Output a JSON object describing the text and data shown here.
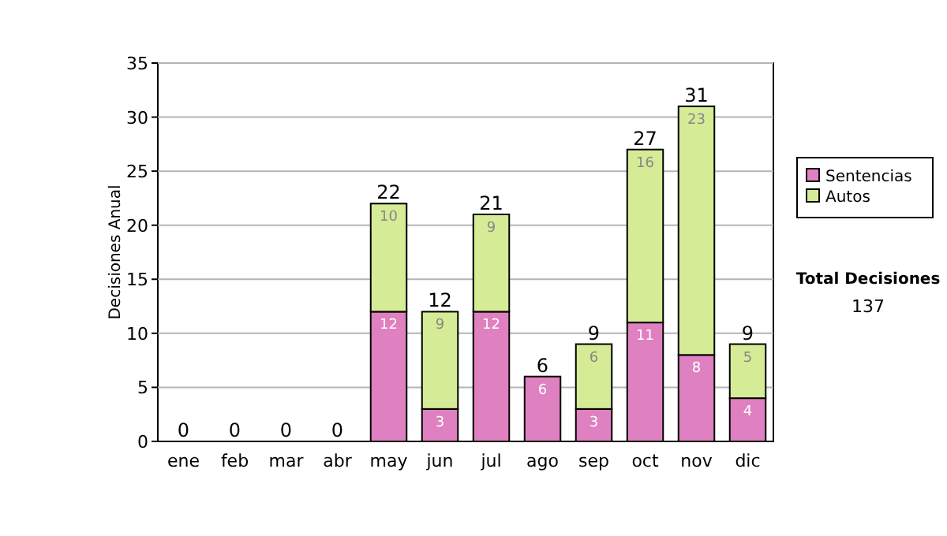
{
  "chart_data": {
    "type": "bar",
    "stacked": true,
    "ylabel": "Decisiones Anual",
    "categories": [
      "ene",
      "feb",
      "mar",
      "abr",
      "may",
      "jun",
      "jul",
      "ago",
      "sep",
      "oct",
      "nov",
      "dic"
    ],
    "series": [
      {
        "name": "Sentencias",
        "color": "#df80c0",
        "values": [
          0,
          0,
          0,
          0,
          12,
          3,
          12,
          6,
          3,
          11,
          8,
          4
        ],
        "value_labels": [
          null,
          null,
          null,
          null,
          "12",
          "3",
          "12",
          "6",
          "3",
          "11",
          "8",
          "4"
        ]
      },
      {
        "name": "Autos",
        "color": "#d5eb96",
        "values": [
          0,
          0,
          0,
          0,
          10,
          9,
          9,
          0,
          6,
          16,
          23,
          5
        ],
        "value_labels": [
          null,
          null,
          null,
          null,
          "10",
          "9",
          "9",
          null,
          "6",
          "16",
          "23",
          "5"
        ]
      }
    ],
    "totals": [
      "0",
      "0",
      "0",
      "0",
      "22",
      "12",
      "21",
      "6",
      "9",
      "27",
      "31",
      "9"
    ],
    "ylim": [
      0,
      35
    ],
    "yticks": [
      0,
      5,
      10,
      15,
      20,
      25,
      30,
      35
    ],
    "grid": "y",
    "legend": "right",
    "annotations": [
      "Total Decisiones",
      "137"
    ]
  }
}
